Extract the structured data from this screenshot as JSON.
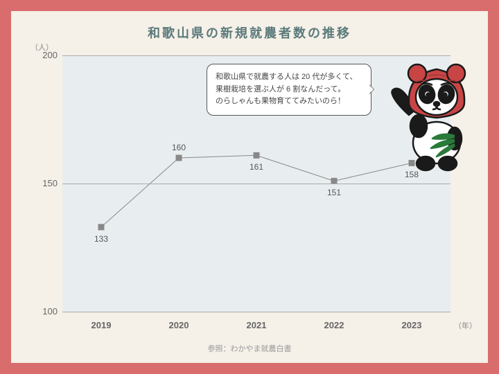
{
  "frame": {
    "border_color": "#d96c6c",
    "border_width": 16,
    "bg_color": "#f5f0e8"
  },
  "title": {
    "text": "和歌山県の新規就農者数の推移",
    "color": "#5a7a7a",
    "fontsize": 18
  },
  "ylabel": "（人）",
  "xlabel": "（年）",
  "chart": {
    "type": "line",
    "plot_bg": "#e8eef0",
    "grid_color": "#aaaaaa",
    "years": [
      "2019",
      "2020",
      "2021",
      "2022",
      "2023"
    ],
    "values": [
      133,
      160,
      161,
      151,
      158
    ],
    "ylim": [
      100,
      200
    ],
    "yticks": [
      100,
      150,
      200
    ],
    "line_color": "#888888",
    "line_width": 1,
    "marker_color": "#888888",
    "marker_size": 9,
    "label_positions": [
      "below",
      "above",
      "below",
      "below",
      "below"
    ]
  },
  "speech": {
    "line1": "和歌山県で就農する人は 20 代が多くて、",
    "line2": "果樹栽培を選ぶ人が 6 割なんだって。",
    "line3": "のらしゃんも果物育ててみたいのら！"
  },
  "source": "参照：わかやま就農白書",
  "mascot": {
    "hood_color": "#c94545",
    "body_color": "#ffffff",
    "outline": "#1a1a1a",
    "leaf_color": "#2a7a3a"
  }
}
